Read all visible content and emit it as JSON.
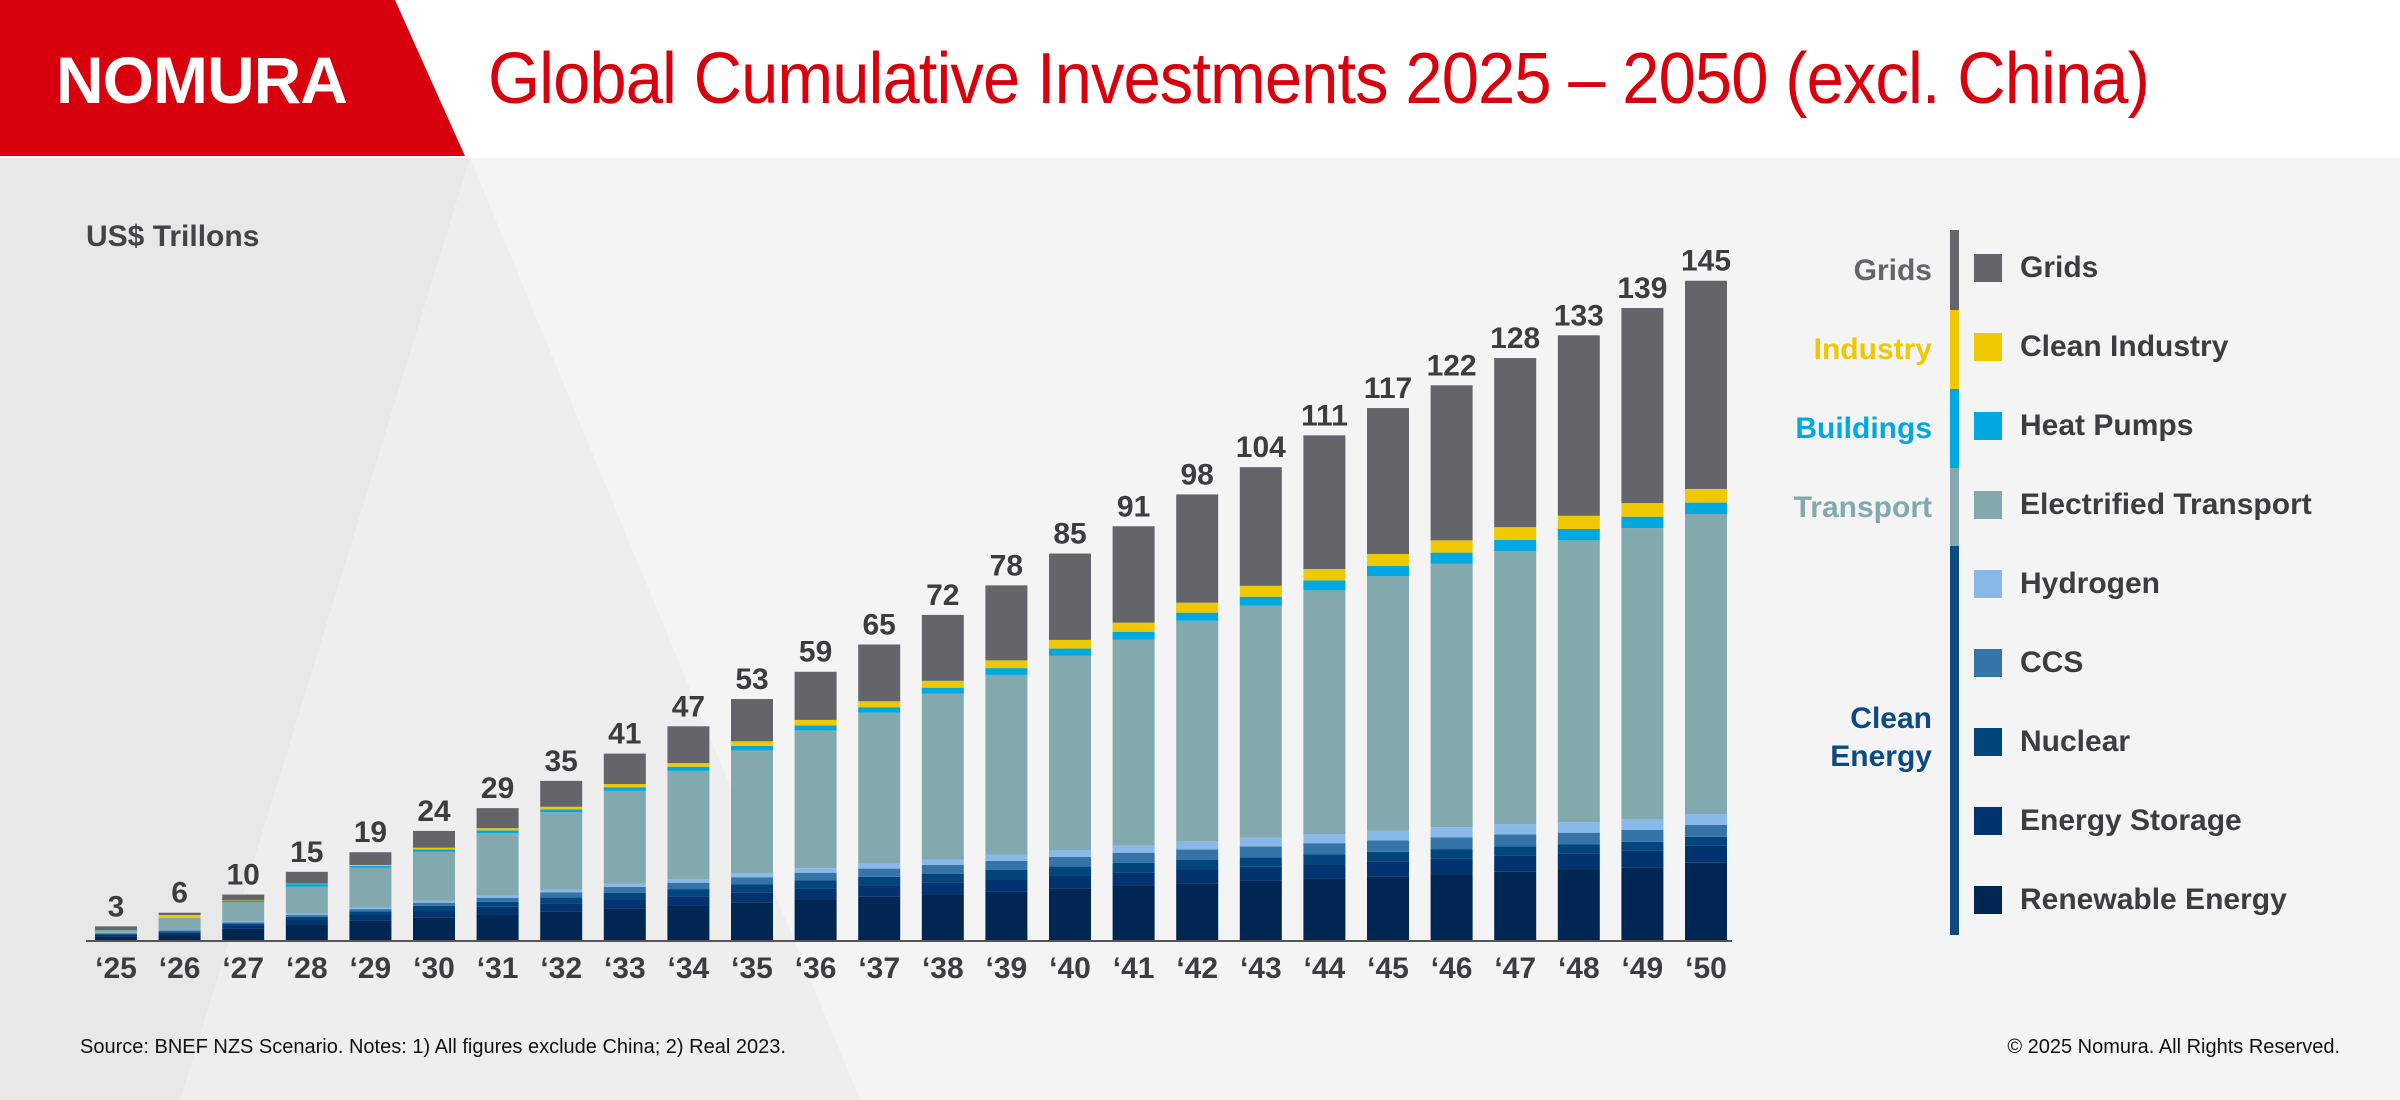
{
  "header": {
    "logo": "NOMURA",
    "title": "Global Cumulative Investments 2025 – 2050 (excl. China)"
  },
  "brand_color": "#d9000d",
  "footer": {
    "source": "Source: BNEF NZS Scenario. Notes: 1) All figures exclude China; 2) Real 2023.",
    "copyright": "© 2025 Nomura. All Rights Reserved."
  },
  "legend": {
    "categories": [
      {
        "label": "Grids",
        "color": "#64656b"
      },
      {
        "label": "Industry",
        "color": "#f0c800"
      },
      {
        "label": "Buildings",
        "color": "#00a8e1"
      },
      {
        "label": "Transport",
        "color": "#82a9ad"
      },
      {
        "label": "Clean Energy",
        "color": "#0c4a80"
      }
    ],
    "items": [
      {
        "label": "Grids",
        "color": "#64656b"
      },
      {
        "label": "Clean Industry",
        "color": "#f0c800"
      },
      {
        "label": "Heat Pumps",
        "color": "#00a8e1"
      },
      {
        "label": "Electrified Transport",
        "color": "#82a9ad"
      },
      {
        "label": "Hydrogen",
        "color": "#88b9e8"
      },
      {
        "label": "CCS",
        "color": "#3474a8"
      },
      {
        "label": "Nuclear",
        "color": "#00457c"
      },
      {
        "label": "Energy Storage",
        "color": "#003370"
      },
      {
        "label": "Renewable Energy",
        "color": "#002654"
      }
    ]
  },
  "chart_data": {
    "type": "bar",
    "stacked": true,
    "title": "Global Cumulative Investments 2025 – 2050 (excl. China)",
    "ylabel": "US$ Trillons",
    "xlabel": "",
    "ylim": [
      0,
      150
    ],
    "grid": false,
    "legend_position": "right",
    "categories": [
      "‘25",
      "‘26",
      "‘27",
      "‘28",
      "‘29",
      "‘30",
      "‘31",
      "‘32",
      "‘33",
      "‘34",
      "‘35",
      "‘36",
      "‘37",
      "‘38",
      "‘39",
      "‘40",
      "‘41",
      "‘42",
      "‘43",
      "‘44",
      "‘45",
      "‘46",
      "‘47",
      "‘48",
      "‘49",
      "‘50"
    ],
    "totals": [
      3,
      6,
      10,
      15,
      19,
      24,
      29,
      35,
      41,
      47,
      53,
      59,
      65,
      72,
      78,
      85,
      91,
      98,
      104,
      111,
      117,
      122,
      128,
      133,
      139,
      145
    ],
    "series": [
      {
        "name": "Renewable Energy",
        "values": [
          0.8,
          1.2,
          2.5,
          3.4,
          4.2,
          5.0,
          5.6,
          6.3,
          7.0,
          7.6,
          8.3,
          8.9,
          9.5,
          10.1,
          10.7,
          11.4,
          12.0,
          12.5,
          13.0,
          13.5,
          14.0,
          14.5,
          15.0,
          15.5,
          16.0,
          17.0
        ]
      },
      {
        "name": "Energy Storage",
        "values": [
          0.3,
          0.4,
          0.7,
          1.1,
          1.3,
          1.5,
          1.7,
          1.8,
          1.9,
          2.0,
          2.2,
          2.4,
          2.5,
          2.6,
          2.7,
          2.8,
          2.9,
          3.0,
          3.1,
          3.2,
          3.3,
          3.4,
          3.5,
          3.5,
          3.6,
          3.7
        ]
      },
      {
        "name": "Nuclear",
        "values": [
          0.2,
          0.3,
          0.4,
          0.6,
          0.8,
          1.0,
          1.1,
          1.3,
          1.5,
          1.6,
          1.7,
          1.8,
          1.9,
          1.9,
          2.0,
          2.0,
          2.1,
          2.1,
          2.1,
          2.1,
          2.1,
          2.1,
          2.1,
          2.0,
          2.0,
          2.0
        ]
      },
      {
        "name": "CCS",
        "values": [
          0.2,
          0.2,
          0.3,
          0.4,
          0.5,
          0.7,
          0.9,
          1.1,
          1.3,
          1.4,
          1.6,
          1.7,
          1.8,
          1.9,
          2.0,
          2.1,
          2.2,
          2.3,
          2.4,
          2.5,
          2.5,
          2.6,
          2.6,
          2.6,
          2.6,
          2.6
        ]
      },
      {
        "name": "Hydrogen",
        "values": [
          0.1,
          0.1,
          0.2,
          0.3,
          0.3,
          0.4,
          0.5,
          0.6,
          0.7,
          0.8,
          0.9,
          1.0,
          1.1,
          1.2,
          1.4,
          1.5,
          1.6,
          1.8,
          1.9,
          2.0,
          2.1,
          2.2,
          2.3,
          2.3,
          2.4,
          2.4
        ]
      },
      {
        "name": "Electrified Transport",
        "values": [
          0.6,
          2.7,
          4.2,
          5.9,
          8.8,
          10.8,
          13.7,
          17.0,
          20.4,
          23.8,
          27.0,
          30.3,
          33.2,
          36.5,
          39.5,
          42.7,
          45.3,
          48.5,
          51.0,
          53.6,
          56.0,
          58.0,
          60.0,
          62.0,
          64.0,
          66.0
        ]
      },
      {
        "name": "Heat Pumps",
        "values": [
          0.0,
          0.0,
          0.3,
          0.6,
          0.4,
          0.5,
          0.6,
          0.6,
          0.8,
          0.9,
          1.0,
          1.1,
          1.2,
          1.3,
          1.5,
          1.6,
          1.7,
          1.8,
          2.0,
          2.2,
          2.3,
          2.4,
          2.5,
          2.5,
          2.5,
          2.5
        ]
      },
      {
        "name": "Clean Industry",
        "values": [
          0.0,
          0.6,
          0.1,
          0.1,
          0.2,
          0.4,
          0.5,
          0.6,
          0.7,
          0.8,
          1.0,
          1.2,
          1.3,
          1.5,
          1.7,
          1.9,
          2.0,
          2.2,
          2.4,
          2.5,
          2.6,
          2.7,
          2.8,
          2.9,
          3.0,
          3.0
        ]
      },
      {
        "name": "Grids",
        "values": [
          0.8,
          0.5,
          1.3,
          2.6,
          2.8,
          3.7,
          4.4,
          5.7,
          6.7,
          8.1,
          9.3,
          10.6,
          12.5,
          14.5,
          16.5,
          19.0,
          21.2,
          23.8,
          26.1,
          29.4,
          32.1,
          34.1,
          37.2,
          39.7,
          42.9,
          45.8
        ]
      }
    ]
  }
}
